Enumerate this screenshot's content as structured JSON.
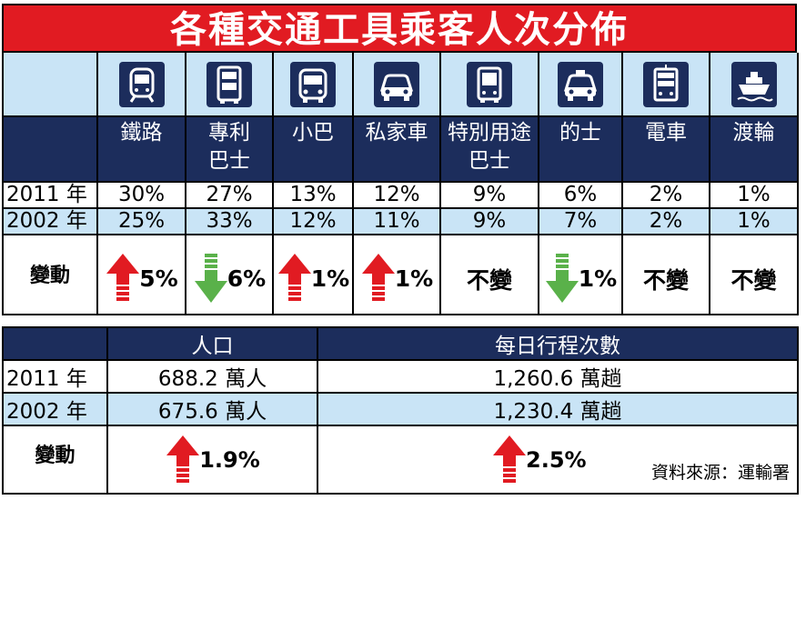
{
  "title": "各種交通工具乘客人次分佈",
  "modes": [
    {
      "icon": "train-icon",
      "name_line1": "鐵路",
      "name_line2": "",
      "y2011": "30%",
      "y2002": "25%",
      "change": "5%",
      "direction": "up"
    },
    {
      "icon": "double-decker-bus-icon",
      "name_line1": "專利",
      "name_line2": "巴士",
      "y2011": "27%",
      "y2002": "33%",
      "change": "6%",
      "direction": "down"
    },
    {
      "icon": "minibus-icon",
      "name_line1": "小巴",
      "name_line2": "",
      "y2011": "13%",
      "y2002": "12%",
      "change": "1%",
      "direction": "up"
    },
    {
      "icon": "car-icon",
      "name_line1": "私家車",
      "name_line2": "",
      "y2011": "12%",
      "y2002": "11%",
      "change": "1%",
      "direction": "up"
    },
    {
      "icon": "bus-icon",
      "name_line1": "特別用途",
      "name_line2": "巴士",
      "y2011": "9%",
      "y2002": "9%",
      "change": "不變",
      "direction": "none"
    },
    {
      "icon": "taxi-icon",
      "name_line1": "的士",
      "name_line2": "",
      "y2011": "6%",
      "y2002": "7%",
      "change": "1%",
      "direction": "down"
    },
    {
      "icon": "tram-icon",
      "name_line1": "電車",
      "name_line2": "",
      "y2011": "2%",
      "y2002": "2%",
      "change": "不變",
      "direction": "none"
    },
    {
      "icon": "ferry-icon",
      "name_line1": "渡輪",
      "name_line2": "",
      "y2011": "1%",
      "y2002": "1%",
      "change": "不變",
      "direction": "none"
    }
  ],
  "row_labels": {
    "y2011": "2011 年",
    "y2002": "2002 年",
    "change": "變動"
  },
  "summary": {
    "headers": {
      "population": "人口",
      "daily_trips": "每日行程次數"
    },
    "rows": [
      {
        "label": "2011 年",
        "population": "688.2 萬人",
        "daily_trips": "1,260.6 萬趟"
      },
      {
        "label": "2002 年",
        "population": "675.6 萬人",
        "daily_trips": "1,230.4 萬趟"
      }
    ],
    "change_label": "變動",
    "population_change": "1.9%",
    "trips_change": "2.5%"
  },
  "source": "資料來源：運輸署",
  "colors": {
    "title_bg": "#e11b22",
    "header_bg": "#1c2d5c",
    "alt_row": "#c9e4f6",
    "up_arrow": "#e11b22",
    "down_arrow": "#5ab14a"
  }
}
